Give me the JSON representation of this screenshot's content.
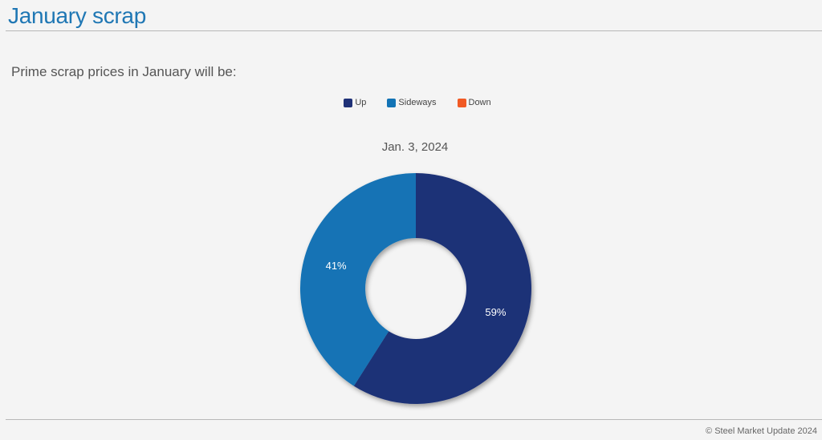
{
  "page": {
    "title": "January scrap",
    "question": "Prime scrap prices in January will be:",
    "copyright": "© Steel Market Update 2024"
  },
  "colors": {
    "accent": "#1f77b4",
    "up": "#1f3177",
    "sideways": "#1273b5",
    "down": "#f15a24"
  },
  "chart_data": {
    "type": "pie",
    "title": "Jan. 3, 2024",
    "categories": [
      "Up",
      "Sideways",
      "Down"
    ],
    "values": [
      59,
      41,
      0
    ],
    "value_labels": [
      "59%",
      "41%",
      ""
    ],
    "colors": [
      "#1f3177",
      "#1273b5",
      "#f15a24"
    ],
    "donut": true,
    "legend_position": "top"
  }
}
